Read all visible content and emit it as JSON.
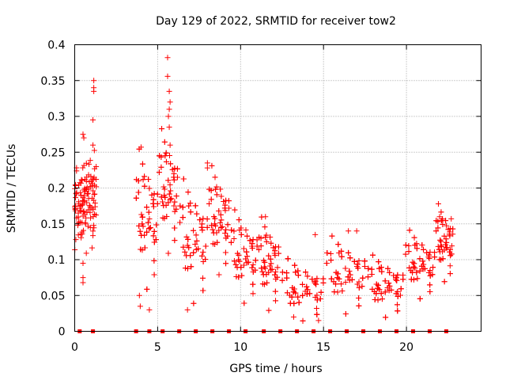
{
  "chart_data": {
    "type": "scatter",
    "title": "Day 129 of 2022, SRMTID for receiver tow2",
    "xlabel": "GPS time / hours",
    "ylabel": "SRMTID / TECUs",
    "xlim": [
      0,
      24.5
    ],
    "ylim": [
      0,
      0.4
    ],
    "x_ticks": [
      0,
      5,
      10,
      15,
      20
    ],
    "y_ticks": [
      0,
      0.05,
      0.1,
      0.15,
      0.2,
      0.25,
      0.3,
      0.35,
      0.4
    ],
    "x_tick_labels": [
      "0",
      "5",
      "10",
      "15",
      "20"
    ],
    "y_tick_labels": [
      "0",
      "0.05",
      "0.1",
      "0.15",
      "0.2",
      "0.25",
      "0.3",
      "0.35",
      "0.4"
    ],
    "grid": true,
    "marker": "plus",
    "color": "#ff0000",
    "baseline_markers": {
      "description": "solid square markers drawn on the zero line",
      "x": [
        0.3,
        1.1,
        3.7,
        4.5,
        5.3,
        6.3,
        7.3,
        8.3,
        9.3,
        10.3,
        11.4,
        12.4,
        13.4,
        14.4,
        15.4,
        16.4,
        17.4,
        18.4,
        19.4,
        20.4,
        21.4,
        22.4
      ]
    },
    "series": [
      {
        "name": "SRMTID",
        "clusters": [
          {
            "x_range": [
              0.0,
              1.3
            ],
            "y_center": 0.18,
            "y_spread": 0.035,
            "count": 120
          },
          {
            "x_range": [
              3.6,
              5.0
            ],
            "y_center": 0.15,
            "y_spread": 0.045,
            "count": 120
          },
          {
            "x_range": [
              5.0,
              6.2
            ],
            "y_center": 0.19,
            "y_spread": 0.04,
            "count": 100
          },
          {
            "x_range": [
              6.2,
              8.0
            ],
            "y_center": 0.12,
            "y_spread": 0.04,
            "count": 110
          },
          {
            "x_range": [
              8.0,
              9.3
            ],
            "y_center": 0.15,
            "y_spread": 0.035,
            "count": 90
          },
          {
            "x_range": [
              9.3,
              11.0
            ],
            "y_center": 0.1,
            "y_spread": 0.03,
            "count": 110
          },
          {
            "x_range": [
              11.0,
              12.3
            ],
            "y_center": 0.09,
            "y_spread": 0.03,
            "count": 90
          },
          {
            "x_range": [
              12.3,
              15.0
            ],
            "y_center": 0.055,
            "y_spread": 0.02,
            "count": 160
          },
          {
            "x_range": [
              15.0,
              17.5
            ],
            "y_center": 0.075,
            "y_spread": 0.025,
            "count": 150
          },
          {
            "x_range": [
              17.5,
              19.8
            ],
            "y_center": 0.06,
            "y_spread": 0.02,
            "count": 130
          },
          {
            "x_range": [
              19.8,
              21.7
            ],
            "y_center": 0.09,
            "y_spread": 0.022,
            "count": 120
          },
          {
            "x_range": [
              21.7,
              22.8
            ],
            "y_center": 0.12,
            "y_spread": 0.025,
            "count": 80
          }
        ],
        "outliers": [
          {
            "x": 1.15,
            "y": 0.35
          },
          {
            "x": 1.15,
            "y": 0.34
          },
          {
            "x": 1.15,
            "y": 0.335
          },
          {
            "x": 1.1,
            "y": 0.295
          },
          {
            "x": 1.1,
            "y": 0.26
          },
          {
            "x": 0.5,
            "y": 0.275
          },
          {
            "x": 0.55,
            "y": 0.27
          },
          {
            "x": 0.5,
            "y": 0.095
          },
          {
            "x": 0.5,
            "y": 0.075
          },
          {
            "x": 0.5,
            "y": 0.068
          },
          {
            "x": 5.6,
            "y": 0.382
          },
          {
            "x": 5.6,
            "y": 0.356
          },
          {
            "x": 5.7,
            "y": 0.335
          },
          {
            "x": 5.75,
            "y": 0.32
          },
          {
            "x": 5.7,
            "y": 0.31
          },
          {
            "x": 5.65,
            "y": 0.3
          },
          {
            "x": 5.7,
            "y": 0.285
          },
          {
            "x": 5.75,
            "y": 0.26
          },
          {
            "x": 4.0,
            "y": 0.257
          },
          {
            "x": 3.9,
            "y": 0.05
          },
          {
            "x": 3.95,
            "y": 0.035
          },
          {
            "x": 4.5,
            "y": 0.03
          },
          {
            "x": 6.8,
            "y": 0.03
          },
          {
            "x": 8.0,
            "y": 0.235
          },
          {
            "x": 8.0,
            "y": 0.228
          },
          {
            "x": 11.5,
            "y": 0.16
          },
          {
            "x": 14.5,
            "y": 0.135
          },
          {
            "x": 16.5,
            "y": 0.14
          },
          {
            "x": 17.0,
            "y": 0.14
          },
          {
            "x": 22.0,
            "y": 0.16
          },
          {
            "x": 22.7,
            "y": 0.157
          },
          {
            "x": 14.7,
            "y": 0.015
          },
          {
            "x": 13.2,
            "y": 0.02
          }
        ]
      }
    ]
  }
}
